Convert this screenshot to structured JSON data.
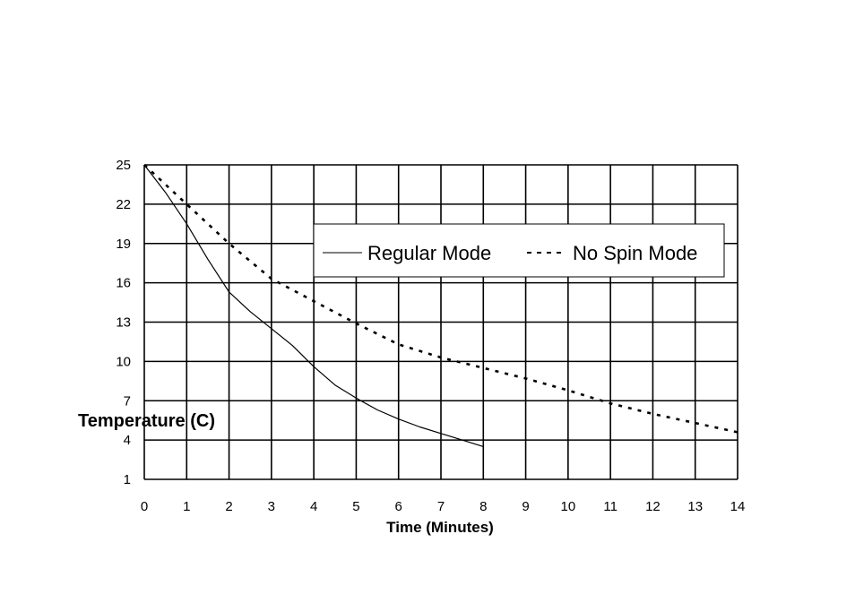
{
  "chart_data": {
    "type": "line",
    "xlabel": "Time (Minutes)",
    "ylabel": "Temperature (C)",
    "xlim": [
      0,
      14
    ],
    "ylim": [
      1,
      25
    ],
    "x_ticks": [
      "0",
      "1",
      "2",
      "3",
      "4",
      "5",
      "6",
      "7",
      "8",
      "9",
      "10",
      "11",
      "12",
      "13",
      "14"
    ],
    "y_ticks": [
      "1",
      "4",
      "7",
      "10",
      "13",
      "16",
      "19",
      "22",
      "25"
    ],
    "grid": true,
    "legend_position": "top-right",
    "series": [
      {
        "name": "Regular Mode",
        "style": "solid",
        "x": [
          0,
          0.5,
          1,
          1.5,
          2,
          2.5,
          3,
          3.5,
          4,
          4.5,
          5,
          5.5,
          6,
          6.5,
          7,
          7.5,
          8
        ],
        "y": [
          25,
          22.9,
          20.5,
          17.8,
          15.3,
          13.8,
          12.5,
          11.2,
          9.6,
          8.2,
          7.2,
          6.3,
          5.6,
          5.0,
          4.5,
          4.0,
          3.5
        ]
      },
      {
        "name": "No Spin Mode",
        "style": "dashed",
        "x": [
          0,
          1,
          2,
          3,
          4,
          5,
          6,
          7,
          8,
          9,
          10,
          11,
          12,
          13,
          14
        ],
        "y": [
          25,
          22.0,
          19.0,
          16.3,
          14.6,
          12.9,
          11.3,
          10.3,
          9.5,
          8.7,
          7.8,
          6.8,
          6.0,
          5.3,
          4.6
        ]
      }
    ]
  }
}
